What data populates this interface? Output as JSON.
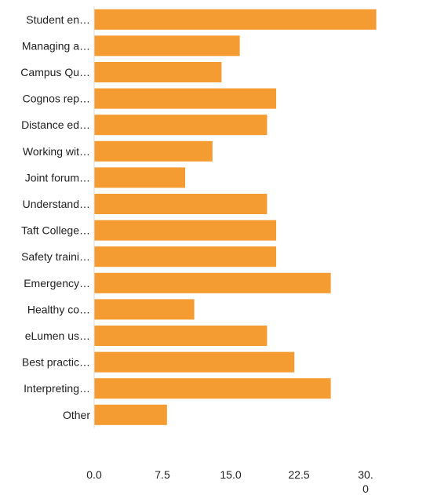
{
  "chart_data": {
    "type": "bar",
    "orientation": "horizontal",
    "title": "",
    "xlabel": "",
    "ylabel": "",
    "categories": [
      "Student en…",
      "Managing a…",
      "Campus Qu…",
      "Cognos rep…",
      "Distance ed…",
      "Working wit…",
      "Joint forum…",
      "Understand…",
      "Taft College…",
      "Safety traini…",
      "Emergency…",
      "Healthy co…",
      "eLumen us…",
      "Best practic…",
      "Interpreting…",
      "Other"
    ],
    "values": [
      31,
      16,
      14,
      20,
      19,
      13,
      10,
      19,
      20,
      20,
      26,
      11,
      19,
      22,
      26,
      8
    ],
    "xlim": [
      0,
      30
    ],
    "xticks": [
      0,
      7.5,
      15,
      22.5,
      30
    ],
    "xtick_labels": [
      "0.0",
      "7.5",
      "15.0",
      "22.5",
      "30.\n0"
    ],
    "bar_color": "#f49b32",
    "grid": false,
    "legend": "none"
  }
}
